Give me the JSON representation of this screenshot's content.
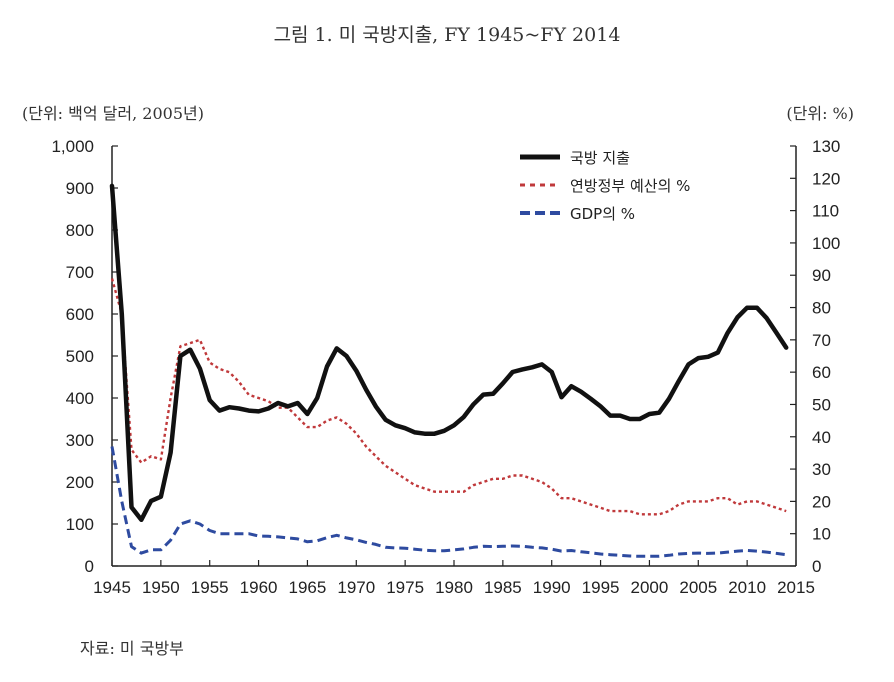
{
  "title": "그림 1. 미 국방지출, FY 1945~FY 2014",
  "unit_left": "(단위: 백억 달러, 2005년)",
  "unit_right": "(단위: %)",
  "source": "자료: 미 국방부",
  "chart_data": {
    "type": "line",
    "xlim": [
      1945,
      2015
    ],
    "x_ticks": [
      "1945",
      "1950",
      "1955",
      "1960",
      "1965",
      "1970",
      "1975",
      "1980",
      "1985",
      "1990",
      "1995",
      "2000",
      "2005",
      "2010",
      "2015"
    ],
    "y_left": {
      "lim": [
        0,
        1000
      ],
      "ticks": [
        "0",
        "100",
        "200",
        "300",
        "400",
        "500",
        "600",
        "700",
        "800",
        "900",
        "1,000"
      ]
    },
    "y_right": {
      "lim": [
        0,
        130
      ],
      "ticks": [
        "0",
        "10",
        "20",
        "30",
        "40",
        "50",
        "60",
        "70",
        "80",
        "90",
        "100",
        "110",
        "120",
        "130"
      ]
    },
    "series": [
      {
        "name": "국방 지출",
        "axis": "left",
        "color": "#111111",
        "style": "solid",
        "points": [
          [
            1945,
            905
          ],
          [
            1946,
            600
          ],
          [
            1947,
            140
          ],
          [
            1948,
            110
          ],
          [
            1949,
            155
          ],
          [
            1950,
            165
          ],
          [
            1951,
            270
          ],
          [
            1952,
            500
          ],
          [
            1953,
            515
          ],
          [
            1954,
            470
          ],
          [
            1955,
            395
          ],
          [
            1956,
            370
          ],
          [
            1957,
            378
          ],
          [
            1958,
            375
          ],
          [
            1959,
            370
          ],
          [
            1960,
            368
          ],
          [
            1961,
            375
          ],
          [
            1962,
            388
          ],
          [
            1963,
            380
          ],
          [
            1964,
            388
          ],
          [
            1965,
            362
          ],
          [
            1966,
            400
          ],
          [
            1967,
            475
          ],
          [
            1968,
            518
          ],
          [
            1969,
            500
          ],
          [
            1970,
            465
          ],
          [
            1971,
            420
          ],
          [
            1972,
            380
          ],
          [
            1973,
            348
          ],
          [
            1974,
            335
          ],
          [
            1975,
            328
          ],
          [
            1976,
            318
          ],
          [
            1977,
            315
          ],
          [
            1978,
            315
          ],
          [
            1979,
            322
          ],
          [
            1980,
            335
          ],
          [
            1981,
            355
          ],
          [
            1982,
            385
          ],
          [
            1983,
            408
          ],
          [
            1984,
            410
          ],
          [
            1985,
            435
          ],
          [
            1986,
            462
          ],
          [
            1987,
            468
          ],
          [
            1988,
            473
          ],
          [
            1989,
            480
          ],
          [
            1990,
            462
          ],
          [
            1991,
            402
          ],
          [
            1992,
            428
          ],
          [
            1993,
            415
          ],
          [
            1994,
            398
          ],
          [
            1995,
            380
          ],
          [
            1996,
            358
          ],
          [
            1997,
            358
          ],
          [
            1998,
            350
          ],
          [
            1999,
            350
          ],
          [
            2000,
            362
          ],
          [
            2001,
            365
          ],
          [
            2002,
            398
          ],
          [
            2003,
            440
          ],
          [
            2004,
            480
          ],
          [
            2005,
            495
          ],
          [
            2006,
            498
          ],
          [
            2007,
            508
          ],
          [
            2008,
            555
          ],
          [
            2009,
            592
          ],
          [
            2010,
            615
          ],
          [
            2011,
            615
          ],
          [
            2012,
            590
          ],
          [
            2013,
            555
          ],
          [
            2014,
            520
          ]
        ]
      },
      {
        "name": "연방정부 예산의 %",
        "axis": "right",
        "color": "#c0393b",
        "style": "dotted",
        "points": [
          [
            1945,
            89
          ],
          [
            1946,
            78
          ],
          [
            1947,
            36
          ],
          [
            1948,
            32
          ],
          [
            1949,
            34
          ],
          [
            1950,
            33
          ],
          [
            1951,
            52
          ],
          [
            1952,
            68
          ],
          [
            1953,
            69
          ],
          [
            1954,
            70
          ],
          [
            1955,
            63
          ],
          [
            1956,
            61
          ],
          [
            1957,
            60
          ],
          [
            1958,
            57
          ],
          [
            1959,
            53
          ],
          [
            1960,
            52
          ],
          [
            1961,
            51
          ],
          [
            1962,
            49
          ],
          [
            1963,
            49
          ],
          [
            1964,
            46
          ],
          [
            1965,
            43
          ],
          [
            1966,
            43
          ],
          [
            1967,
            45
          ],
          [
            1968,
            46
          ],
          [
            1969,
            44
          ],
          [
            1970,
            41
          ],
          [
            1971,
            37
          ],
          [
            1972,
            34
          ],
          [
            1973,
            31
          ],
          [
            1974,
            29
          ],
          [
            1975,
            27
          ],
          [
            1976,
            25
          ],
          [
            1977,
            24
          ],
          [
            1978,
            23
          ],
          [
            1979,
            23
          ],
          [
            1980,
            23
          ],
          [
            1981,
            23
          ],
          [
            1982,
            25
          ],
          [
            1983,
            26
          ],
          [
            1984,
            27
          ],
          [
            1985,
            27
          ],
          [
            1986,
            28
          ],
          [
            1987,
            28
          ],
          [
            1988,
            27
          ],
          [
            1989,
            26
          ],
          [
            1990,
            24
          ],
          [
            1991,
            21
          ],
          [
            1992,
            21
          ],
          [
            1993,
            20
          ],
          [
            1994,
            19
          ],
          [
            1995,
            18
          ],
          [
            1996,
            17
          ],
          [
            1997,
            17
          ],
          [
            1998,
            17
          ],
          [
            1999,
            16
          ],
          [
            2000,
            16
          ],
          [
            2001,
            16
          ],
          [
            2002,
            17
          ],
          [
            2003,
            19
          ],
          [
            2004,
            20
          ],
          [
            2005,
            20
          ],
          [
            2006,
            20
          ],
          [
            2007,
            21
          ],
          [
            2008,
            21
          ],
          [
            2009,
            19
          ],
          [
            2010,
            20
          ],
          [
            2011,
            20
          ],
          [
            2012,
            19
          ],
          [
            2013,
            18
          ],
          [
            2014,
            17
          ]
        ]
      },
      {
        "name": "GDP의 %",
        "axis": "right",
        "color": "#2e4ba0",
        "style": "dashed",
        "points": [
          [
            1945,
            37
          ],
          [
            1946,
            20
          ],
          [
            1947,
            6
          ],
          [
            1948,
            4
          ],
          [
            1949,
            5
          ],
          [
            1950,
            5
          ],
          [
            1951,
            8
          ],
          [
            1952,
            13
          ],
          [
            1953,
            14
          ],
          [
            1954,
            13
          ],
          [
            1955,
            11
          ],
          [
            1956,
            10
          ],
          [
            1957,
            10
          ],
          [
            1958,
            10
          ],
          [
            1959,
            10
          ],
          [
            1960,
            9.3
          ],
          [
            1961,
            9.2
          ],
          [
            1962,
            9
          ],
          [
            1963,
            8.7
          ],
          [
            1964,
            8.4
          ],
          [
            1965,
            7.5
          ],
          [
            1966,
            7.8
          ],
          [
            1967,
            8.8
          ],
          [
            1968,
            9.5
          ],
          [
            1969,
            8.7
          ],
          [
            1970,
            8.1
          ],
          [
            1971,
            7.3
          ],
          [
            1972,
            6.7
          ],
          [
            1973,
            5.8
          ],
          [
            1974,
            5.6
          ],
          [
            1975,
            5.5
          ],
          [
            1976,
            5.2
          ],
          [
            1977,
            4.9
          ],
          [
            1978,
            4.7
          ],
          [
            1979,
            4.7
          ],
          [
            1980,
            5
          ],
          [
            1981,
            5.3
          ],
          [
            1982,
            5.8
          ],
          [
            1983,
            6.1
          ],
          [
            1984,
            6
          ],
          [
            1985,
            6.1
          ],
          [
            1986,
            6.2
          ],
          [
            1987,
            6.1
          ],
          [
            1988,
            5.8
          ],
          [
            1989,
            5.6
          ],
          [
            1990,
            5.2
          ],
          [
            1991,
            4.6
          ],
          [
            1992,
            4.8
          ],
          [
            1993,
            4.4
          ],
          [
            1994,
            4.1
          ],
          [
            1995,
            3.7
          ],
          [
            1996,
            3.5
          ],
          [
            1997,
            3.3
          ],
          [
            1998,
            3.1
          ],
          [
            1999,
            3
          ],
          [
            2000,
            3
          ],
          [
            2001,
            3
          ],
          [
            2002,
            3.3
          ],
          [
            2003,
            3.7
          ],
          [
            2004,
            3.9
          ],
          [
            2005,
            4
          ],
          [
            2006,
            3.9
          ],
          [
            2007,
            4
          ],
          [
            2008,
            4.3
          ],
          [
            2009,
            4.6
          ],
          [
            2010,
            4.8
          ],
          [
            2011,
            4.6
          ],
          [
            2012,
            4.3
          ],
          [
            2013,
            3.9
          ],
          [
            2014,
            3.5
          ]
        ]
      }
    ]
  }
}
